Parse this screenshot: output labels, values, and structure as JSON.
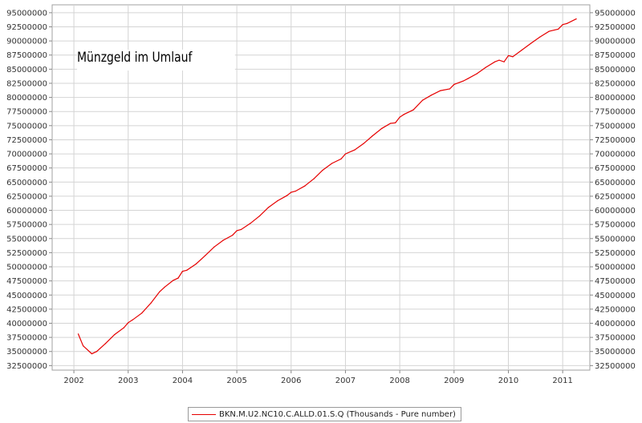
{
  "chart_data": {
    "type": "line",
    "title": "Münzgeld im Umlauf",
    "xlabel": "",
    "ylabel": "",
    "x_ticks": [
      "2002",
      "2003",
      "2004",
      "2005",
      "2006",
      "2007",
      "2008",
      "2009",
      "2010",
      "2011"
    ],
    "y_ticks": [
      "32500000",
      "35000000",
      "37500000",
      "40000000",
      "42500000",
      "45000000",
      "47500000",
      "50000000",
      "52500000",
      "55000000",
      "57500000",
      "60000000",
      "62500000",
      "65000000",
      "67500000",
      "70000000",
      "72500000",
      "75000000",
      "77500000",
      "80000000",
      "82500000",
      "85000000",
      "87500000",
      "90000000",
      "92500000",
      "95000000"
    ],
    "xlim": [
      2001.6,
      2011.5
    ],
    "ylim": [
      31700000,
      96400000
    ],
    "grid": true,
    "legend_position": "bottom",
    "series": [
      {
        "name": "BKN.M.U2.NC10.C.ALLD.01.S.Q (Thousands - Pure number)",
        "color": "#e60000",
        "x": [
          2002.08,
          2002.17,
          2002.33,
          2002.42,
          2002.58,
          2002.75,
          2002.92,
          2003.0,
          2003.08,
          2003.25,
          2003.42,
          2003.58,
          2003.67,
          2003.83,
          2003.92,
          2004.0,
          2004.08,
          2004.25,
          2004.42,
          2004.58,
          2004.75,
          2004.92,
          2005.0,
          2005.08,
          2005.25,
          2005.42,
          2005.58,
          2005.75,
          2005.92,
          2006.0,
          2006.08,
          2006.25,
          2006.42,
          2006.58,
          2006.75,
          2006.92,
          2007.0,
          2007.17,
          2007.33,
          2007.5,
          2007.67,
          2007.83,
          2007.92,
          2008.0,
          2008.08,
          2008.25,
          2008.42,
          2008.58,
          2008.75,
          2008.92,
          2009.0,
          2009.17,
          2009.25,
          2009.42,
          2009.58,
          2009.75,
          2009.83,
          2009.92,
          2010.0,
          2010.08,
          2010.25,
          2010.42,
          2010.58,
          2010.75,
          2010.92,
          2011.0,
          2011.08,
          2011.25
        ],
        "y": [
          38100000,
          36000000,
          34600000,
          35000000,
          36400000,
          38000000,
          39200000,
          40100000,
          40600000,
          41800000,
          43600000,
          45600000,
          46400000,
          47600000,
          48000000,
          49200000,
          49400000,
          50500000,
          52000000,
          53500000,
          54700000,
          55600000,
          56400000,
          56600000,
          57700000,
          59000000,
          60500000,
          61700000,
          62600000,
          63200000,
          63400000,
          64300000,
          65600000,
          67100000,
          68300000,
          69100000,
          70000000,
          70700000,
          71800000,
          73200000,
          74500000,
          75400000,
          75500000,
          76500000,
          77000000,
          77800000,
          79500000,
          80400000,
          81200000,
          81500000,
          82300000,
          82900000,
          83300000,
          84200000,
          85300000,
          86300000,
          86600000,
          86300000,
          87400000,
          87200000,
          88400000,
          89600000,
          90700000,
          91700000,
          92100000,
          92900000,
          93100000,
          93900000
        ]
      }
    ]
  }
}
